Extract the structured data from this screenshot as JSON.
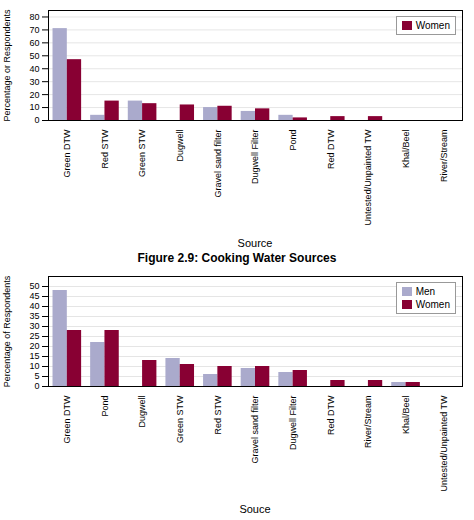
{
  "chart_data": [
    {
      "type": "bar",
      "categories": [
        "Green DTW",
        "Red STW",
        "Green STW",
        "Dugwell",
        "Gravel sand filter",
        "Dugwell Filter",
        "Pond",
        "Red DTW",
        "Untested/Unpainted TW",
        "Khal/Beel",
        "River/Stream"
      ],
      "series": [
        {
          "color": "#aaaacc",
          "values": [
            71,
            4,
            15,
            0,
            10,
            7,
            4,
            0,
            0,
            0,
            0
          ]
        },
        {
          "name": "Women",
          "color": "#880033",
          "values": [
            47,
            15,
            13,
            12,
            11,
            9,
            2,
            3,
            3,
            0,
            0
          ]
        }
      ],
      "xlabel": "Source",
      "ylabel": "Percentage or Respondents",
      "ylim": [
        0,
        85
      ],
      "yticks": [
        0,
        10,
        20,
        30,
        40,
        50,
        60,
        70,
        80
      ],
      "grid": true,
      "legend": "upper right"
    },
    {
      "type": "bar",
      "title": "Figure 2.9: Cooking Water Sources",
      "categories": [
        "Green DTW",
        "Pond",
        "Dugwell",
        "Green STW",
        "Red STW",
        "Gravel sand filter",
        "Dugwell Filter",
        "Red DTW",
        "River/Stream",
        "Khal/Beel",
        "Untested/Unpainted TW"
      ],
      "series": [
        {
          "name": "Men",
          "color": "#aaaacc",
          "values": [
            48,
            22,
            0,
            14,
            6,
            9,
            7,
            0,
            0,
            2,
            0
          ]
        },
        {
          "name": "Women",
          "color": "#880033",
          "values": [
            28,
            28,
            13,
            11,
            10,
            10,
            8,
            3,
            3,
            2,
            0
          ]
        }
      ],
      "xlabel": "Souce",
      "ylabel": "Percentage of Respondents",
      "ylim": [
        0,
        55
      ],
      "yticks": [
        0,
        5,
        10,
        15,
        20,
        25,
        30,
        35,
        40,
        45,
        50
      ],
      "grid": true,
      "legend": "upper right"
    }
  ]
}
